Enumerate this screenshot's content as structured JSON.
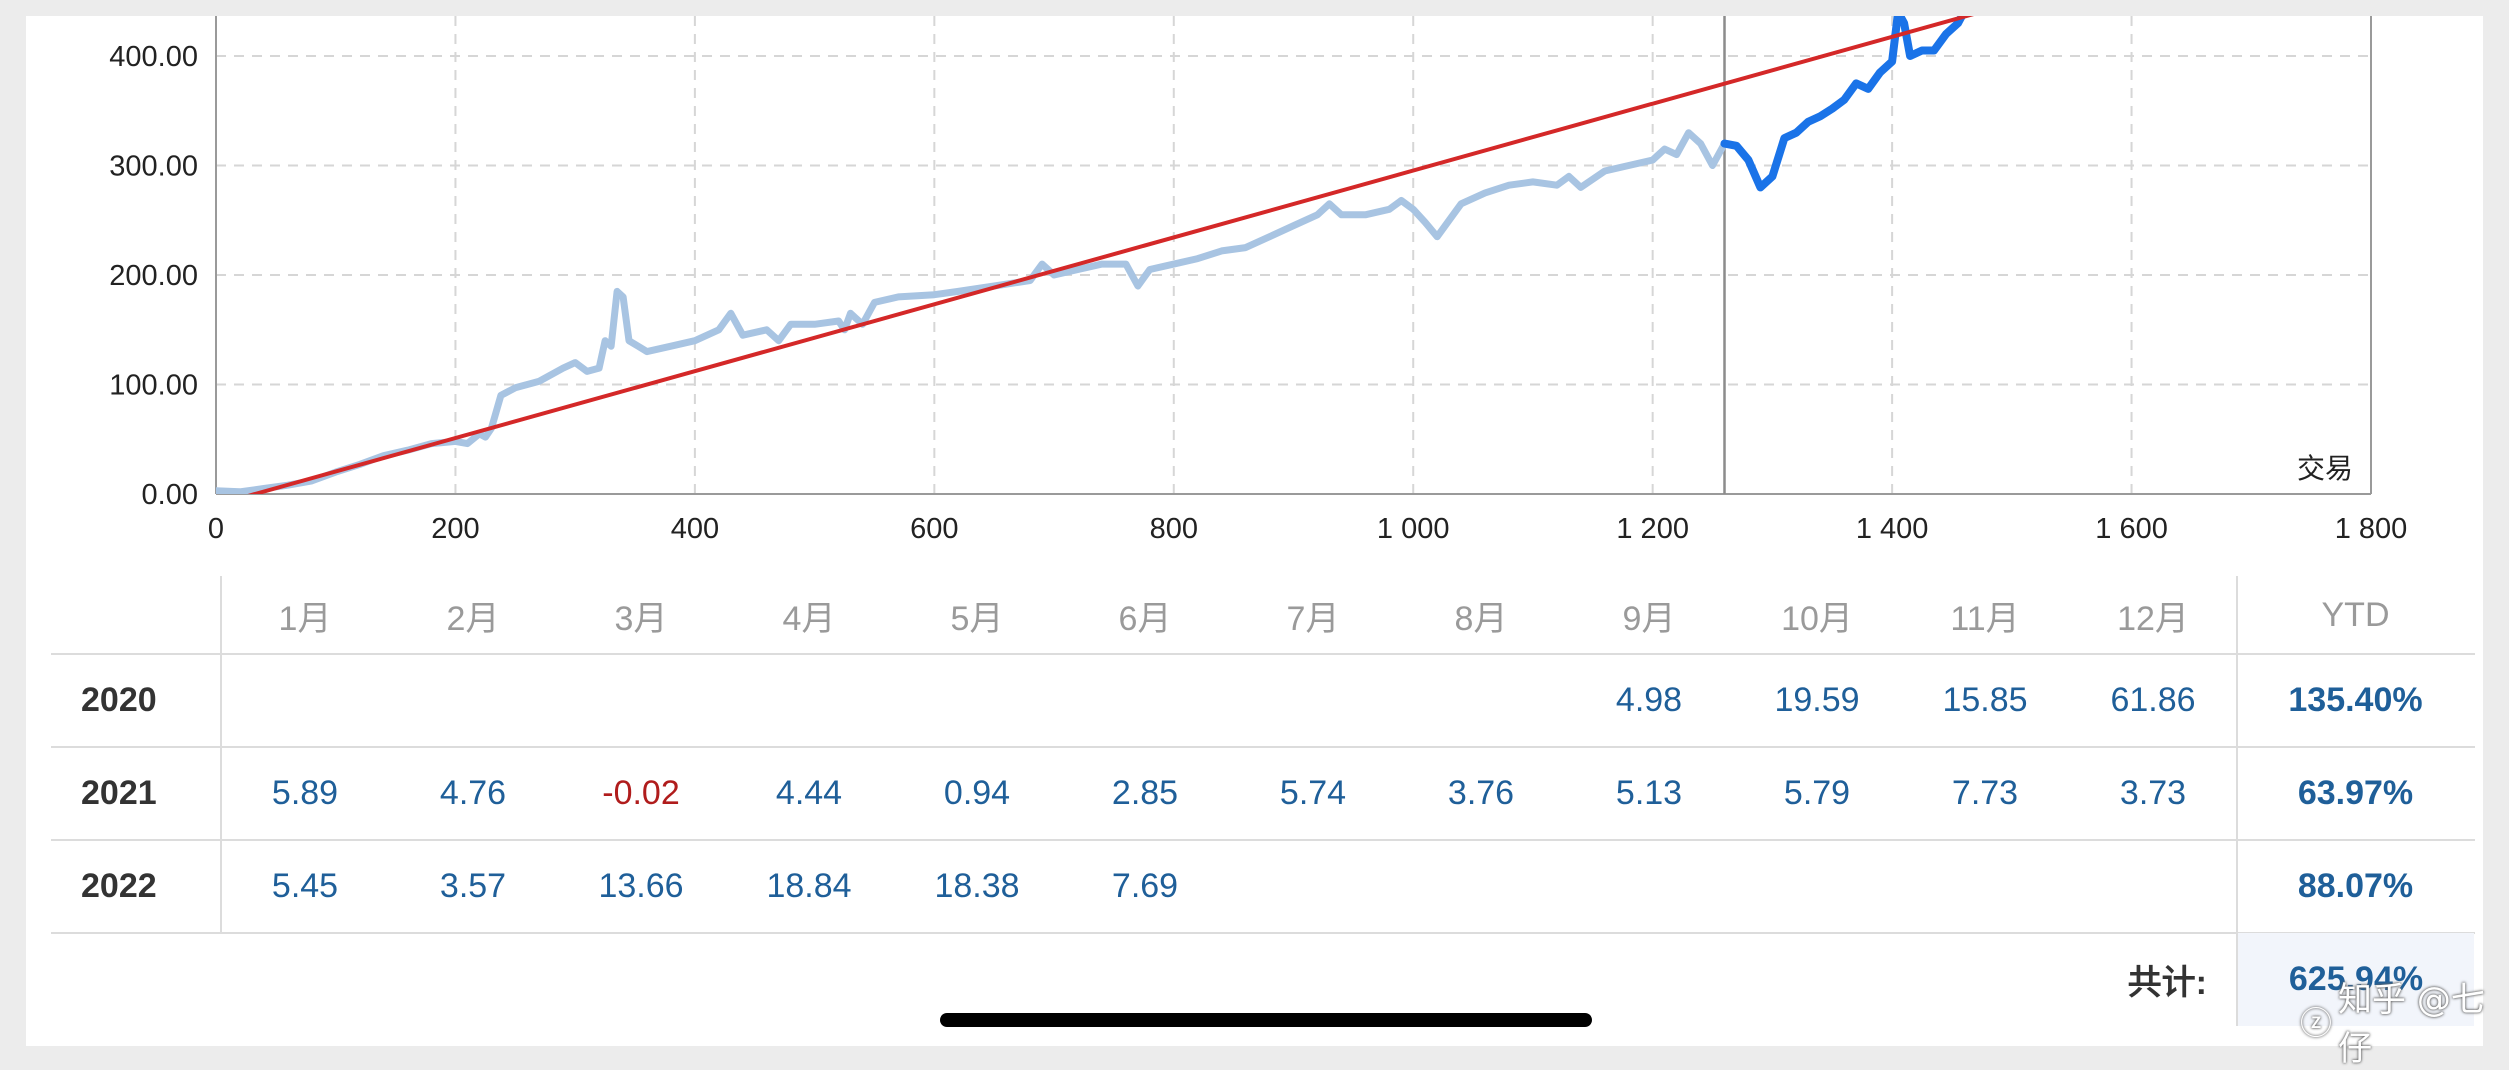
{
  "chart_data": {
    "type": "line",
    "xlabel": "交易",
    "ylabel": "",
    "xlim": [
      0,
      1800
    ],
    "ylim": [
      0,
      440
    ],
    "x_ticks": [
      "0",
      "200",
      "400",
      "600",
      "800",
      "1 000",
      "1 200",
      "1 400",
      "1 600",
      "1 800"
    ],
    "x_tick_values": [
      0,
      200,
      400,
      600,
      800,
      1000,
      1200,
      1400,
      1600,
      1800
    ],
    "y_ticks": [
      "0.00",
      "100.00",
      "200.00",
      "300.00",
      "400.00"
    ],
    "y_tick_values": [
      0,
      100,
      200,
      300,
      400
    ],
    "grid": true,
    "marker_x": 1260,
    "series": [
      {
        "role": "history",
        "color": "#a8c4e2",
        "points": [
          [
            0,
            3
          ],
          [
            20,
            2
          ],
          [
            40,
            5
          ],
          [
            60,
            8
          ],
          [
            80,
            12
          ],
          [
            100,
            20
          ],
          [
            120,
            27
          ],
          [
            140,
            35
          ],
          [
            160,
            40
          ],
          [
            180,
            46
          ],
          [
            200,
            48
          ],
          [
            210,
            46
          ],
          [
            220,
            55
          ],
          [
            225,
            52
          ],
          [
            230,
            60
          ],
          [
            238,
            90
          ],
          [
            250,
            97
          ],
          [
            270,
            103
          ],
          [
            290,
            115
          ],
          [
            300,
            120
          ],
          [
            310,
            112
          ],
          [
            320,
            115
          ],
          [
            325,
            140
          ],
          [
            330,
            135
          ],
          [
            335,
            185
          ],
          [
            340,
            180
          ],
          [
            345,
            140
          ],
          [
            360,
            130
          ],
          [
            380,
            135
          ],
          [
            400,
            140
          ],
          [
            420,
            150
          ],
          [
            430,
            165
          ],
          [
            440,
            145
          ],
          [
            460,
            150
          ],
          [
            470,
            140
          ],
          [
            480,
            155
          ],
          [
            500,
            155
          ],
          [
            520,
            158
          ],
          [
            525,
            150
          ],
          [
            530,
            165
          ],
          [
            540,
            155
          ],
          [
            550,
            175
          ],
          [
            570,
            180
          ],
          [
            600,
            182
          ],
          [
            620,
            185
          ],
          [
            650,
            190
          ],
          [
            680,
            195
          ],
          [
            690,
            210
          ],
          [
            700,
            200
          ],
          [
            720,
            205
          ],
          [
            740,
            210
          ],
          [
            760,
            210
          ],
          [
            770,
            190
          ],
          [
            780,
            205
          ],
          [
            800,
            210
          ],
          [
            820,
            215
          ],
          [
            840,
            222
          ],
          [
            860,
            225
          ],
          [
            880,
            235
          ],
          [
            900,
            245
          ],
          [
            920,
            255
          ],
          [
            930,
            265
          ],
          [
            940,
            255
          ],
          [
            960,
            255
          ],
          [
            980,
            260
          ],
          [
            990,
            268
          ],
          [
            1000,
            260
          ],
          [
            1010,
            248
          ],
          [
            1020,
            235
          ],
          [
            1030,
            250
          ],
          [
            1040,
            265
          ],
          [
            1060,
            275
          ],
          [
            1080,
            282
          ],
          [
            1100,
            285
          ],
          [
            1120,
            282
          ],
          [
            1130,
            290
          ],
          [
            1140,
            280
          ],
          [
            1160,
            295
          ],
          [
            1180,
            300
          ],
          [
            1200,
            305
          ],
          [
            1210,
            315
          ],
          [
            1220,
            310
          ],
          [
            1230,
            330
          ],
          [
            1240,
            320
          ],
          [
            1250,
            300
          ],
          [
            1260,
            320
          ]
        ]
      },
      {
        "role": "current",
        "color": "#1a73e8",
        "points": [
          [
            1260,
            320
          ],
          [
            1270,
            318
          ],
          [
            1280,
            305
          ],
          [
            1290,
            280
          ],
          [
            1300,
            290
          ],
          [
            1310,
            325
          ],
          [
            1320,
            330
          ],
          [
            1330,
            340
          ],
          [
            1340,
            345
          ],
          [
            1350,
            352
          ],
          [
            1360,
            360
          ],
          [
            1370,
            375
          ],
          [
            1380,
            370
          ],
          [
            1390,
            385
          ],
          [
            1400,
            395
          ],
          [
            1405,
            440
          ],
          [
            1410,
            430
          ],
          [
            1415,
            400
          ],
          [
            1425,
            405
          ],
          [
            1435,
            405
          ],
          [
            1445,
            420
          ],
          [
            1455,
            430
          ],
          [
            1460,
            440
          ]
        ]
      },
      {
        "role": "trend",
        "color": "#d42828",
        "points": [
          [
            0,
            -10
          ],
          [
            1490,
            445
          ]
        ]
      }
    ]
  },
  "table": {
    "months": [
      "1月",
      "2月",
      "3月",
      "4月",
      "5月",
      "6月",
      "7月",
      "8月",
      "9月",
      "10月",
      "11月",
      "12月"
    ],
    "ytd_label": "YTD",
    "rows": [
      {
        "year": "2020",
        "values": [
          "",
          "",
          "",
          "",
          "",
          "",
          "",
          "",
          "4.98",
          "19.59",
          "15.85",
          "61.86"
        ],
        "ytd": "135.40%"
      },
      {
        "year": "2021",
        "values": [
          "5.89",
          "4.76",
          "-0.02",
          "4.44",
          "0.94",
          "2.85",
          "5.74",
          "3.76",
          "5.13",
          "5.79",
          "7.73",
          "3.73"
        ],
        "ytd": "63.97%"
      },
      {
        "year": "2022",
        "values": [
          "5.45",
          "3.57",
          "13.66",
          "18.84",
          "18.38",
          "7.69",
          "",
          "",
          "",
          "",
          "",
          ""
        ],
        "ytd": "88.07%"
      }
    ],
    "total_label": "共计:",
    "total_value": "625.94%"
  },
  "watermark": "知乎 @七 仔",
  "icons": {
    "watermark": "zhihu-logo-icon"
  }
}
